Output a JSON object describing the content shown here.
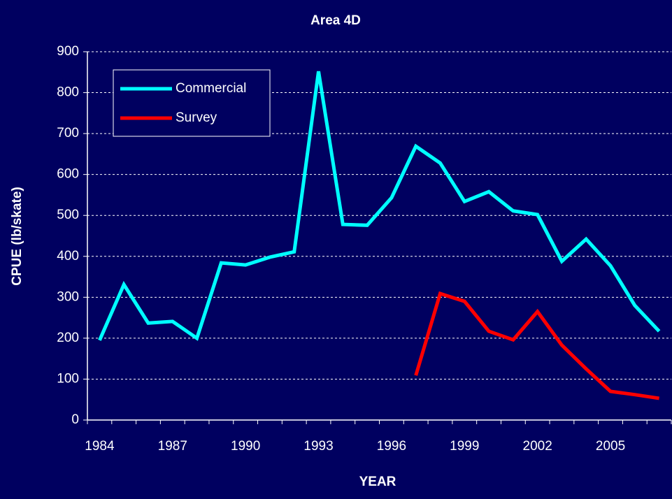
{
  "chart_data": {
    "type": "line",
    "title": "Area 4D",
    "x_label": "YEAR",
    "y_label": "CPUE (lb/skate)",
    "categories": [
      "1984",
      null,
      null,
      "1987",
      null,
      null,
      "1990",
      null,
      null,
      "1993",
      null,
      null,
      "1996",
      null,
      null,
      "1999",
      null,
      null,
      "2002",
      null,
      null,
      "2005",
      null,
      null
    ],
    "series": [
      {
        "name": "Commercial",
        "color": "#00ffff",
        "values": [
          195,
          331,
          237,
          241,
          200,
          384,
          379,
          398,
          411,
          852,
          478,
          476,
          543,
          669,
          628,
          534,
          558,
          511,
          502,
          388,
          442,
          377,
          280,
          217
        ]
      },
      {
        "name": "Survey",
        "color": "#ff0000",
        "values": [
          null,
          null,
          null,
          null,
          null,
          null,
          null,
          null,
          null,
          null,
          null,
          null,
          null,
          109,
          309,
          290,
          217,
          196,
          265,
          183,
          125,
          70,
          62,
          53
        ]
      }
    ],
    "ylim": [
      0,
      900
    ],
    "yticks": [
      0,
      100,
      200,
      300,
      400,
      500,
      600,
      700,
      800,
      900
    ],
    "grid": true,
    "legend": "upper left"
  }
}
